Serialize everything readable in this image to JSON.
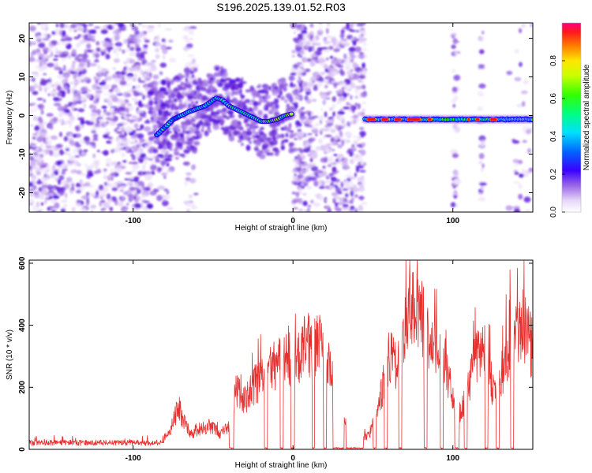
{
  "chart_data": [
    {
      "type": "heatmap",
      "title": "S196.2025.139.01.52.R03",
      "xlabel": "Height of straight line (km)",
      "ylabel": "Frequency (Hz)",
      "xlim": [
        -165,
        150
      ],
      "ylim": [
        -25,
        24
      ],
      "xticks": [
        -100,
        0,
        100
      ],
      "xtick_labels": [
        "-100",
        "0",
        "100"
      ],
      "yticks": [
        -20,
        -10,
        0,
        10,
        20
      ],
      "ytick_labels": [
        "-20",
        "-10",
        "0",
        "10",
        "20"
      ],
      "colorbar": {
        "label": "Normalized spectral amplitude",
        "range": [
          0,
          1
        ],
        "ticks": [
          0.0,
          0.2,
          0.4,
          0.6,
          0.8
        ],
        "tick_labels": [
          "0.0",
          "0.2",
          "0.4",
          "0.6",
          "0.8"
        ]
      },
      "ridge": {
        "x": [
          -85,
          -75,
          -65,
          -55,
          -48,
          -44,
          -40,
          -35,
          -30,
          -25,
          -20,
          -15,
          -10,
          -5,
          0
        ],
        "y": [
          -5,
          -1,
          1,
          2.5,
          4.5,
          4,
          2.5,
          1.5,
          0.5,
          -0.5,
          -1.5,
          -1.5,
          -1,
          0,
          0.5
        ]
      },
      "steady_band": {
        "x_start": 45,
        "x_end": 150,
        "y": -1
      },
      "grid": false
    },
    {
      "type": "line",
      "xlabel": "Height of straight line (km)",
      "ylabel": "SNR (10 * v/v)",
      "xlim": [
        -165,
        150
      ],
      "ylim": [
        0,
        610
      ],
      "xticks": [
        -100,
        0,
        100
      ],
      "xtick_labels": [
        "-100",
        "0",
        "100"
      ],
      "yticks": [
        0,
        200,
        400,
        600
      ],
      "ytick_labels": [
        "0",
        "200",
        "400",
        "600"
      ],
      "series_color": "#e8302f",
      "envelope": {
        "x": [
          -165,
          -140,
          -100,
          -82,
          -76,
          -72,
          -68,
          -64,
          -58,
          -52,
          -46,
          -40,
          -36,
          -30,
          -24,
          -18,
          -12,
          -6,
          0,
          6,
          12,
          18,
          24,
          30,
          36,
          42,
          48,
          54,
          60,
          66,
          72,
          78,
          84,
          90,
          96,
          102,
          108,
          114,
          120,
          126,
          132,
          138,
          144,
          150
        ],
        "y": [
          25,
          20,
          22,
          25,
          90,
          170,
          110,
          60,
          80,
          95,
          60,
          90,
          240,
          200,
          260,
          290,
          330,
          380,
          360,
          400,
          430,
          420,
          300,
          120,
          80,
          40,
          60,
          180,
          370,
          330,
          540,
          570,
          470,
          380,
          340,
          120,
          200,
          360,
          420,
          210,
          330,
          500,
          500,
          400
        ]
      },
      "grid": false
    }
  ]
}
